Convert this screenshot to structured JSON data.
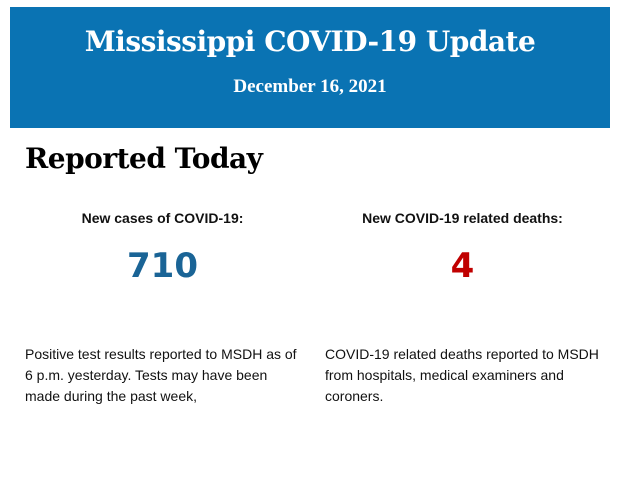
{
  "header": {
    "title": "Mississippi COVID-19 Update",
    "date": "December 16, 2021",
    "background_color": "#0a73b3"
  },
  "section": {
    "heading": "Reported Today"
  },
  "stats": [
    {
      "label": "New cases of COVID-19:",
      "value": "710",
      "color": "#1a6496",
      "description": "Positive test results reported to MSDH as of 6 p.m. yesterday. Tests may have been made during the past week,"
    },
    {
      "label": "New COVID-19 related deaths:",
      "value": "4",
      "color": "#c00000",
      "description": "COVID-19 related deaths reported to MSDH from hospitals, medical examiners and coroners."
    }
  ]
}
